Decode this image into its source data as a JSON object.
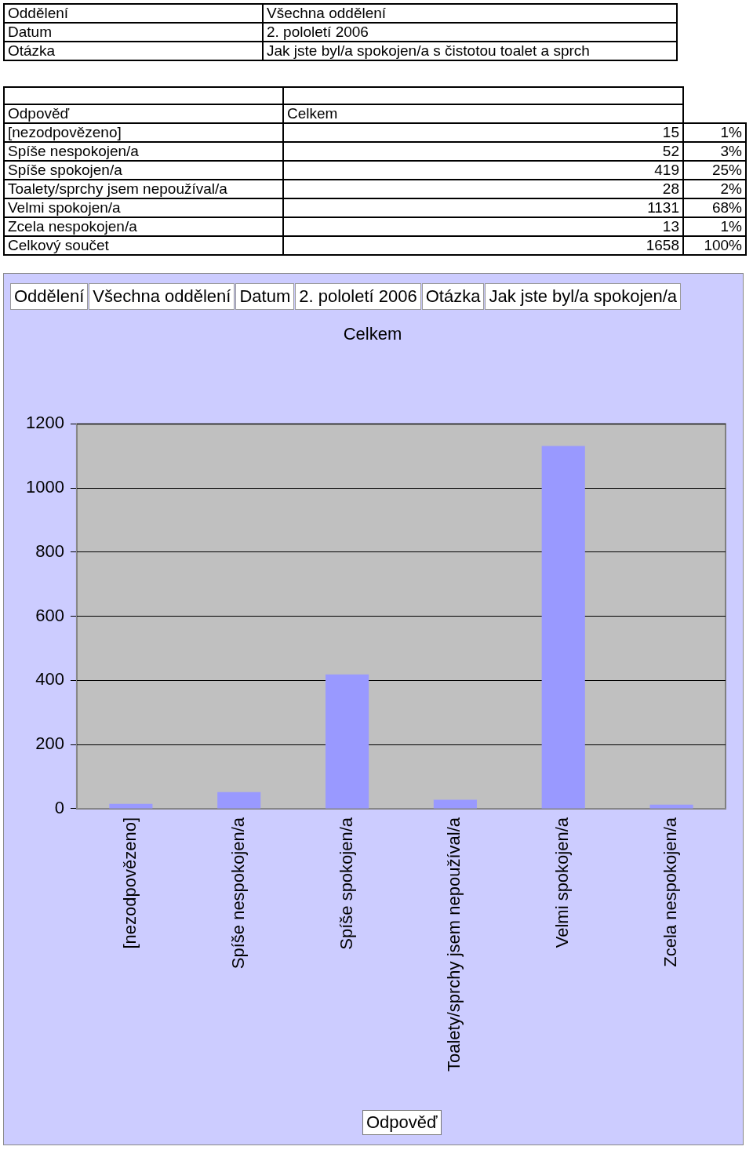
{
  "chart_data": {
    "type": "bar",
    "title": "Celkem",
    "xlabel": "Odpověď",
    "categories": [
      "[nezodpovězeno]",
      "Spíše nespokojen/a",
      "Spíše spokojen/a",
      "Toalety/sprchy jsem nepoužíval/a",
      "Velmi spokojen/a",
      "Zcela nespokojen/a"
    ],
    "values": [
      15,
      52,
      419,
      28,
      1131,
      13
    ],
    "color": "#9999ff",
    "ylim": [
      0,
      1200
    ],
    "yticks": [
      0,
      200,
      400,
      600,
      800,
      1000,
      1200
    ],
    "grid": "y",
    "legend": false,
    "annotations": [
      "Oddělení",
      "Všechna oddělení",
      "Datum",
      "2. pololetí 2006",
      "Otázka",
      "Jak jste byl/a spokojen/a s čistotou toalet a sprch",
      "Odpověď",
      "Celkem",
      "15",
      "52",
      "419",
      "28",
      "1131",
      "13",
      "1%",
      "3%",
      "25%",
      "2%",
      "68%",
      "1%",
      "Celkový součet",
      "1658",
      "100%",
      "Oddělení",
      "Všechna oddělení",
      "Datum",
      "2. pololetí 2006",
      "Otázka",
      "Jak jste byl/a spokojen/a"
    ]
  }
}
